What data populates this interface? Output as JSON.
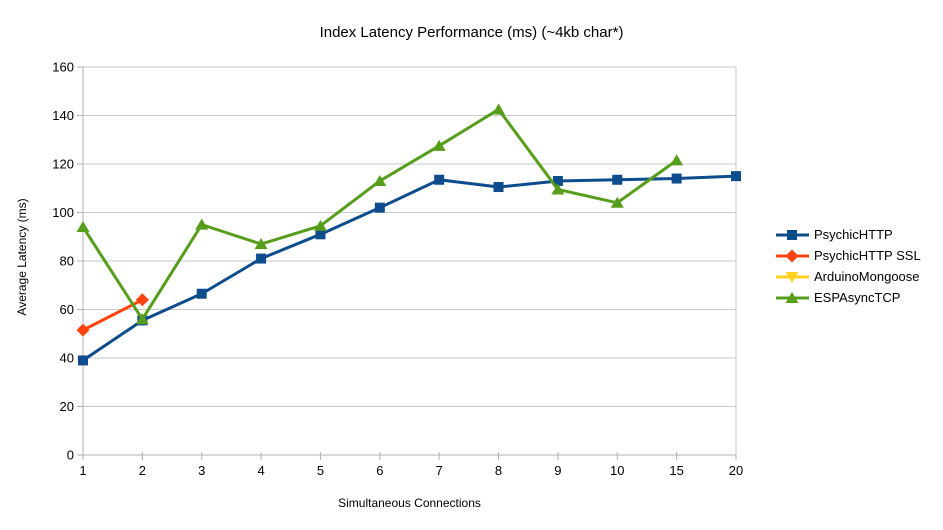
{
  "page": {
    "background": "#ffffff"
  },
  "chart_data": {
    "type": "line",
    "title": "Index Latency Performance (ms) (~4kb char*)",
    "xlabel": "Simultaneous Connections",
    "ylabel": "Average Latency (ms)",
    "categories": [
      "1",
      "2",
      "3",
      "4",
      "5",
      "6",
      "7",
      "8",
      "9",
      "10",
      "15",
      "20"
    ],
    "ylim": [
      0,
      160
    ],
    "ytick_step": 20,
    "grid": "horizontal",
    "legend_position": "right",
    "grid_color": "#c9c9c9",
    "axis_color": "#b0b0b0",
    "text_color": "#000000",
    "series": [
      {
        "name": "PsychicHTTP",
        "color": "#0d4d8e",
        "marker": "square",
        "values": [
          39,
          55.5,
          66.5,
          81,
          91,
          102,
          113.5,
          110.5,
          113,
          113.5,
          114,
          115
        ]
      },
      {
        "name": "PsychicHTTP SSL",
        "color": "#ff420e",
        "marker": "diamond",
        "values": [
          51.5,
          64,
          null,
          null,
          null,
          null,
          null,
          null,
          null,
          null,
          null,
          null
        ]
      },
      {
        "name": "ArduinoMongoose",
        "color": "#ffd320",
        "marker": "triangle-down",
        "values": [
          null,
          null,
          null,
          null,
          null,
          null,
          null,
          null,
          null,
          null,
          null,
          null
        ]
      },
      {
        "name": "ESPAsyncTCP",
        "color": "#579d1c",
        "marker": "triangle-up",
        "values": [
          94,
          56,
          95,
          87,
          94.5,
          113,
          127.5,
          142.5,
          109.5,
          104,
          121.5,
          null
        ]
      }
    ]
  }
}
